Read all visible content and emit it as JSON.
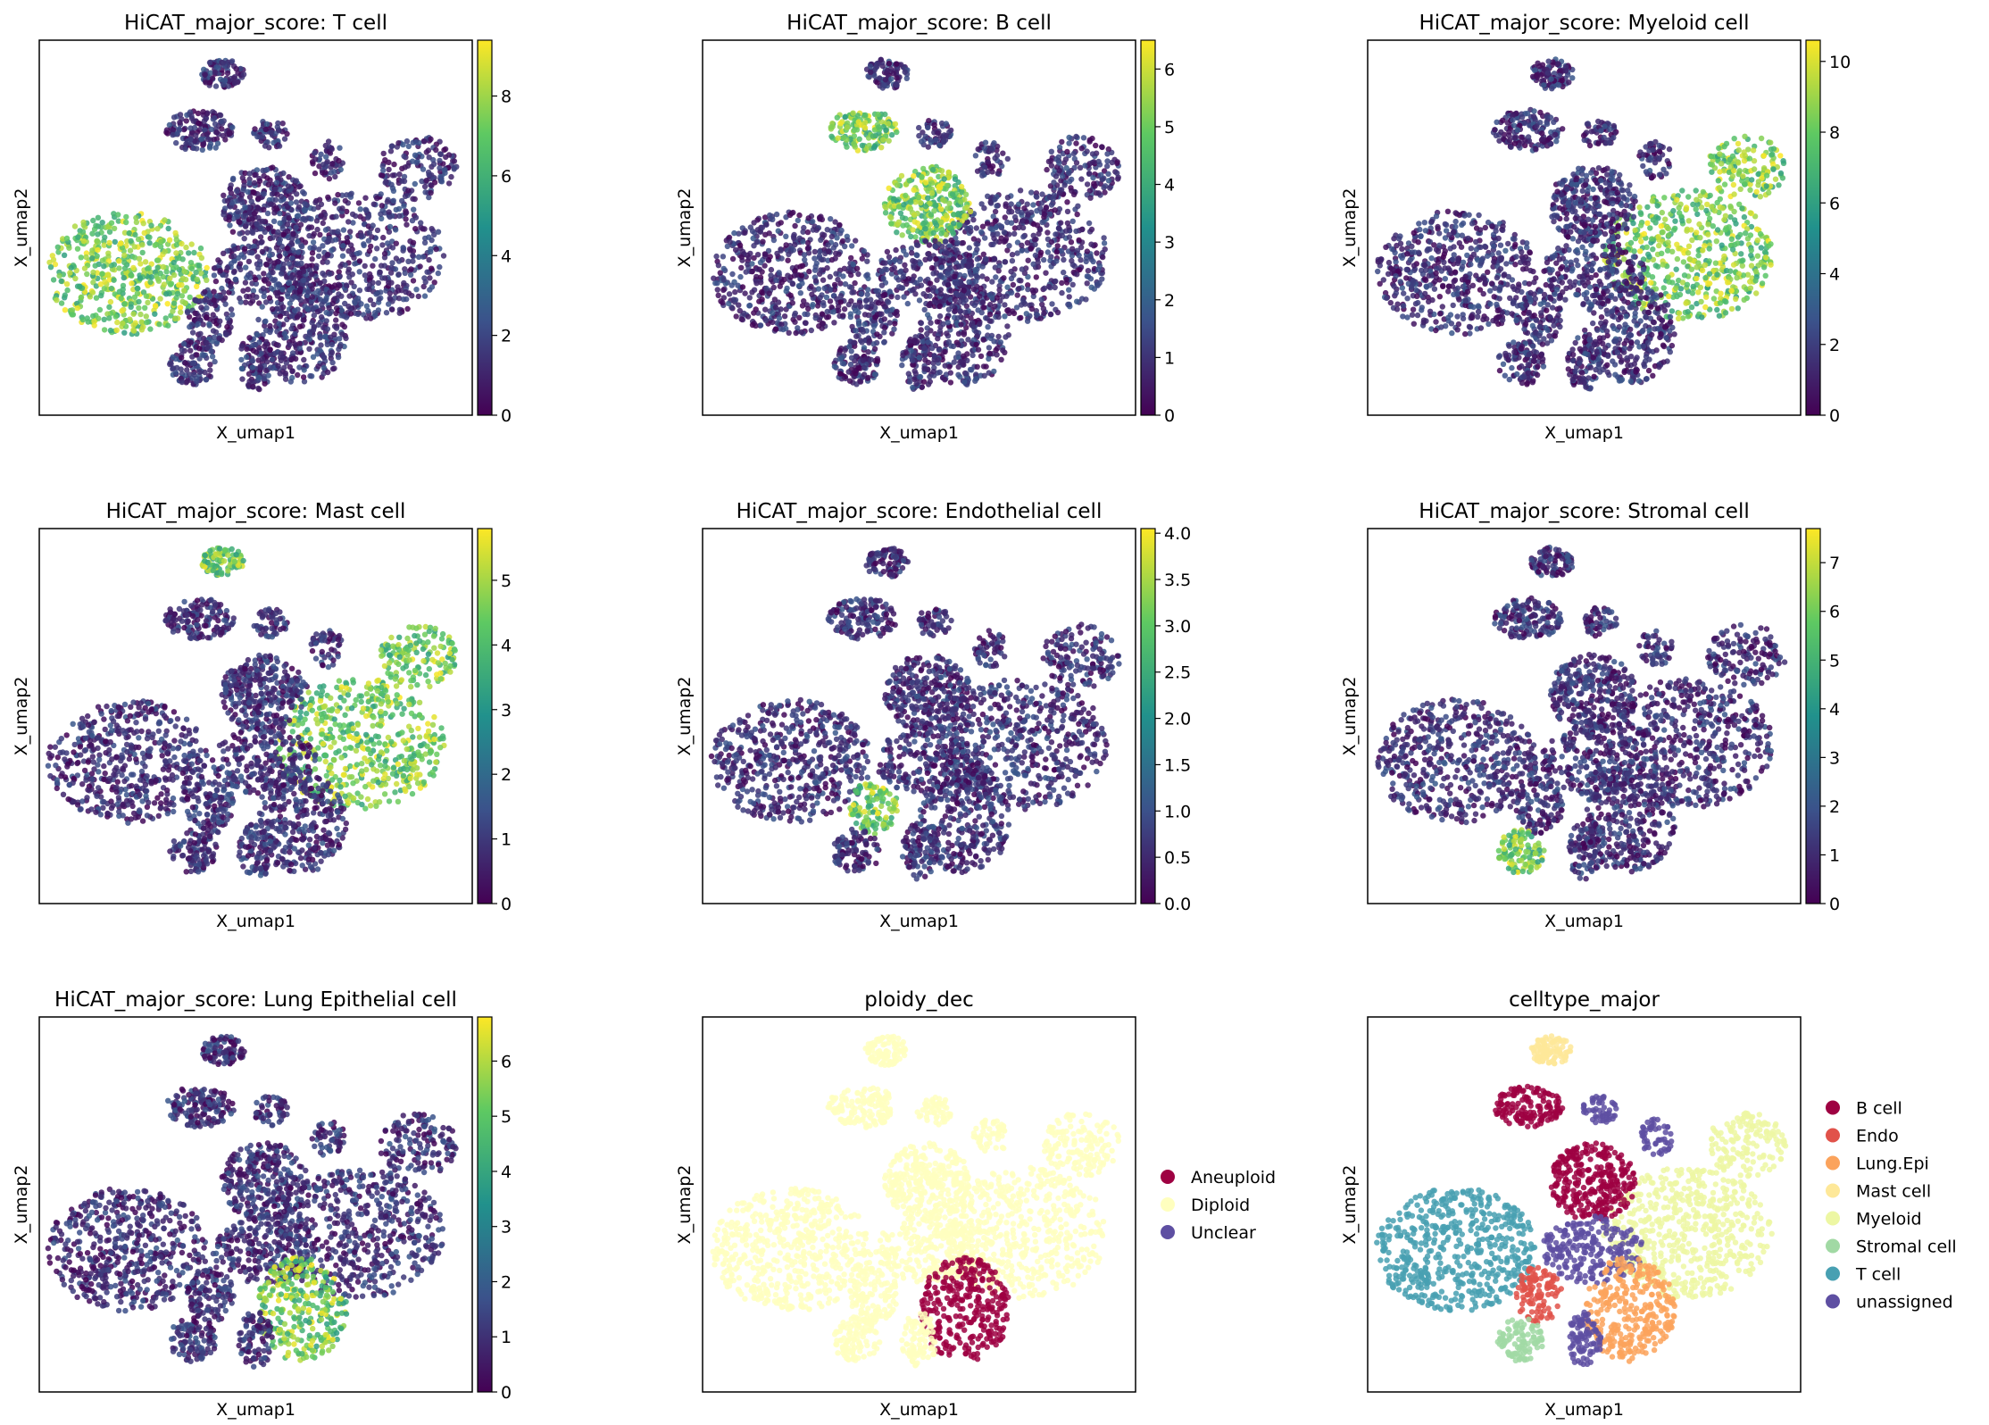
{
  "figure": {
    "background": "#ffffff",
    "xlabel": "X_umap1",
    "ylabel": "X_umap2"
  },
  "colormap": "viridis",
  "chart_data": [
    {
      "type": "scatter",
      "title": "HiCAT_major_score: T cell",
      "xlabel": "X_umap1",
      "ylabel": "X_umap2",
      "colorbar": {
        "ticks": [
          0,
          2,
          4,
          6,
          8
        ],
        "range": [
          0,
          9.4
        ]
      },
      "high_regions": [
        "left-lobe"
      ]
    },
    {
      "type": "scatter",
      "title": "HiCAT_major_score: B cell",
      "xlabel": "X_umap1",
      "ylabel": "X_umap2",
      "colorbar": {
        "ticks": [
          0,
          1,
          2,
          3,
          4,
          5,
          6
        ],
        "range": [
          0,
          6.5
        ]
      },
      "high_regions": [
        "upper-left-cluster",
        "center-top"
      ]
    },
    {
      "type": "scatter",
      "title": "HiCAT_major_score: Myeloid cell",
      "xlabel": "X_umap1",
      "ylabel": "X_umap2",
      "colorbar": {
        "ticks": [
          0,
          2,
          4,
          6,
          8,
          10
        ],
        "range": [
          0,
          10.6
        ]
      },
      "high_regions": [
        "right-lobe"
      ]
    },
    {
      "type": "scatter",
      "title": "HiCAT_major_score: Mast cell",
      "xlabel": "X_umap1",
      "ylabel": "X_umap2",
      "colorbar": {
        "ticks": [
          0,
          1,
          2,
          3,
          4,
          5
        ],
        "range": [
          0,
          5.8
        ]
      },
      "high_regions": [
        "top-cluster",
        "right-lobe"
      ]
    },
    {
      "type": "scatter",
      "title": "HiCAT_major_score: Endothelial cell",
      "xlabel": "X_umap1",
      "ylabel": "X_umap2",
      "colorbar": {
        "ticks": [
          0.0,
          0.5,
          1.0,
          1.5,
          2.0,
          2.5,
          3.0,
          3.5,
          4.0
        ],
        "tick_labels": [
          "0.0",
          "0.5",
          "1.0",
          "1.5",
          "2.0",
          "2.5",
          "3.0",
          "3.5",
          "4.0"
        ],
        "range": [
          0,
          4.05
        ]
      },
      "high_regions": [
        "endo-arm"
      ]
    },
    {
      "type": "scatter",
      "title": "HiCAT_major_score: Stromal cell",
      "xlabel": "X_umap1",
      "ylabel": "X_umap2",
      "colorbar": {
        "ticks": [
          0,
          1,
          2,
          3,
          4,
          5,
          6,
          7
        ],
        "range": [
          0,
          7.7
        ]
      },
      "high_regions": [
        "stromal-arm"
      ]
    },
    {
      "type": "scatter",
      "title": "HiCAT_major_score: Lung Epithelial cell",
      "xlabel": "X_umap1",
      "ylabel": "X_umap2",
      "colorbar": {
        "ticks": [
          0,
          1,
          2,
          3,
          4,
          5,
          6
        ],
        "range": [
          0,
          6.8
        ]
      },
      "high_regions": [
        "epi-arms"
      ]
    },
    {
      "type": "scatter",
      "title": "ploidy_dec",
      "xlabel": "X_umap1",
      "ylabel": "X_umap2",
      "legend": [
        {
          "label": "Aneuploid",
          "color": "#9e0142"
        },
        {
          "label": "Diploid",
          "color": "#ffffbf"
        },
        {
          "label": "Unclear",
          "color": "#5e4fa2"
        }
      ],
      "region_categories": {
        "default": "Diploid",
        "epi-arms": "Aneuploid"
      }
    },
    {
      "type": "scatter",
      "title": "celltype_major",
      "xlabel": "X_umap1",
      "ylabel": "X_umap2",
      "legend": [
        {
          "label": "B cell",
          "color": "#9e0142"
        },
        {
          "label": "Endo",
          "color": "#e1524a"
        },
        {
          "label": "Lung.Epi",
          "color": "#fba35c"
        },
        {
          "label": "Mast cell",
          "color": "#fee899"
        },
        {
          "label": "Myeloid",
          "color": "#edf7a3"
        },
        {
          "label": "Stromal cell",
          "color": "#a1d9a4"
        },
        {
          "label": "T cell",
          "color": "#48a0b2"
        },
        {
          "label": "unassigned",
          "color": "#5e4fa2"
        }
      ],
      "region_categories": {
        "left-lobe": "T cell",
        "right-lobe": "Myeloid",
        "top-cluster": "Mast cell",
        "upper-left-cluster": "B cell",
        "center-top": "B cell",
        "epi-arms": "Lung.Epi",
        "endo-arm": "Endo",
        "stromal-arm": "Stromal cell",
        "default": "unassigned"
      }
    }
  ]
}
